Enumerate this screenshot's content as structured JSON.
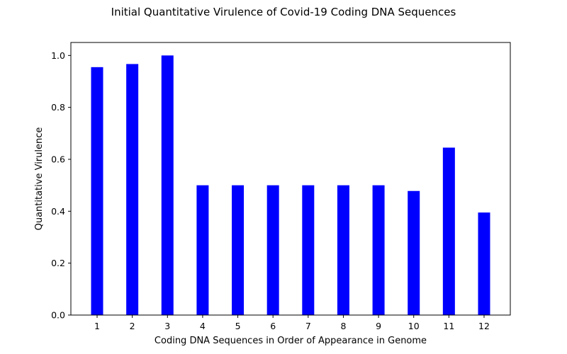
{
  "chart_data": {
    "type": "bar",
    "title": "Initial Quantitative Virulence of Covid-19 Coding DNA Sequences",
    "xlabel": "Coding DNA Sequences in Order of Appearance in Genome",
    "ylabel": "Quantitative Virulence",
    "categories": [
      "1",
      "2",
      "3",
      "4",
      "5",
      "6",
      "7",
      "8",
      "9",
      "10",
      "11",
      "12"
    ],
    "values": [
      0.955,
      0.967,
      1.0,
      0.5,
      0.5,
      0.5,
      0.5,
      0.5,
      0.5,
      0.478,
      0.645,
      0.395
    ],
    "ylim": [
      0.0,
      1.05
    ],
    "yticks": [
      "0.0",
      "0.2",
      "0.4",
      "0.6",
      "0.8",
      "1.0"
    ],
    "grid": false,
    "bar_color": "#0000ff"
  }
}
